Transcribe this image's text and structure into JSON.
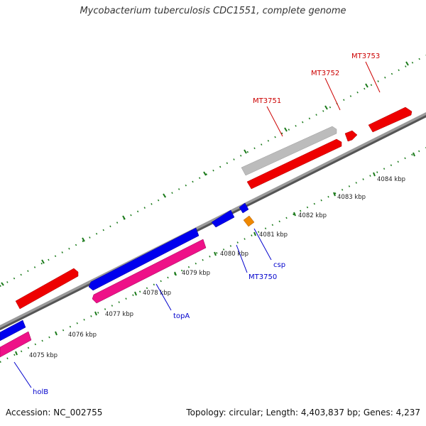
{
  "title": "Mycobacterium tuberculosis CDC1551, complete genome",
  "footer": {
    "accession": "Accession: NC_002755",
    "summary": "Topology: circular; Length: 4,403,837 bp; Genes: 4,237"
  },
  "colors": {
    "backbone": "#888888",
    "forward_cds": "#ee0000",
    "forward_pseudo": "#bbbbbb",
    "reverse_cds": "#0000ee",
    "reverse_rna": "#ee1188",
    "misc": "#ee8800",
    "tick": "#1a7a1a",
    "label_red": "#cc0000",
    "label_blue": "#0000cc"
  },
  "kbp_labels": [
    "4075 kbp",
    "4076 kbp",
    "4077 kbp",
    "4078 kbp",
    "4079 kbp",
    "4080 kbp",
    "4081 kbp",
    "4082 kbp",
    "4083 kbp",
    "4084 kbp"
  ],
  "forward_labels": [
    "MT3751",
    "MT3752",
    "MT3753"
  ],
  "reverse_labels": [
    "holB",
    "topA",
    "MT3750",
    "csp"
  ]
}
